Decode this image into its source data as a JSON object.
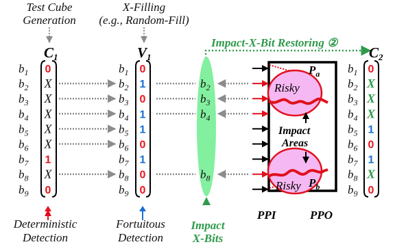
{
  "captions": {
    "test_cube_line1": "Test Cube",
    "test_cube_line2": "Generation",
    "x_fill_line1": "X-Filling",
    "x_fill_line2": "(e.g., Random-Fill)",
    "restoring": "Impact-X-Bit Restoring ②",
    "deterministic_line1": "Deterministic",
    "deterministic_line2": "Detection",
    "fortuitous_line1": "Fortuitous",
    "fortuitous_line2": "Detection",
    "impact_bits_line1": "Impact",
    "impact_bits_line2": "X-Bits",
    "ppi": "PPI",
    "ppo": "PPO",
    "risky_top": "Risky",
    "risky_bottom": "Risky",
    "impact_areas_line1": "Impact",
    "impact_areas_line2": "Areas",
    "pa": "P",
    "pa_sub": "a",
    "pb": "P",
    "pb_sub": "b"
  },
  "bit_labels": [
    "b1",
    "b2",
    "b3",
    "b4",
    "b5",
    "b6",
    "b7",
    "b8",
    "b9"
  ],
  "vectors": {
    "c1": {
      "name": "C",
      "sub": "1",
      "values": [
        "0",
        "X",
        "X",
        "X",
        "X",
        "X",
        "1",
        "X",
        "0"
      ]
    },
    "v1": {
      "name": "V",
      "sub": "1",
      "values": [
        "0",
        "1",
        "0",
        "1",
        "1",
        "0",
        "1",
        "0",
        "0"
      ]
    },
    "c2": {
      "name": "C",
      "sub": "2",
      "values": [
        "0",
        "X",
        "X",
        "X",
        "1",
        "0",
        "1",
        "X",
        "0"
      ]
    }
  },
  "impact_bits": [
    "b2",
    "b3",
    "b4",
    "b8"
  ],
  "colors": {
    "zero": "#e8141c",
    "one_fill": "#1a6fd1",
    "x_restored": "#2f9a4a",
    "impact_green": "#2f9a4a",
    "ellipse_fill": "#83f0a0",
    "risky_fill": "#f6b8f2",
    "risky_stroke": "#e0101c",
    "arrow_gray": "#8c8c8c",
    "text": "#111111"
  }
}
